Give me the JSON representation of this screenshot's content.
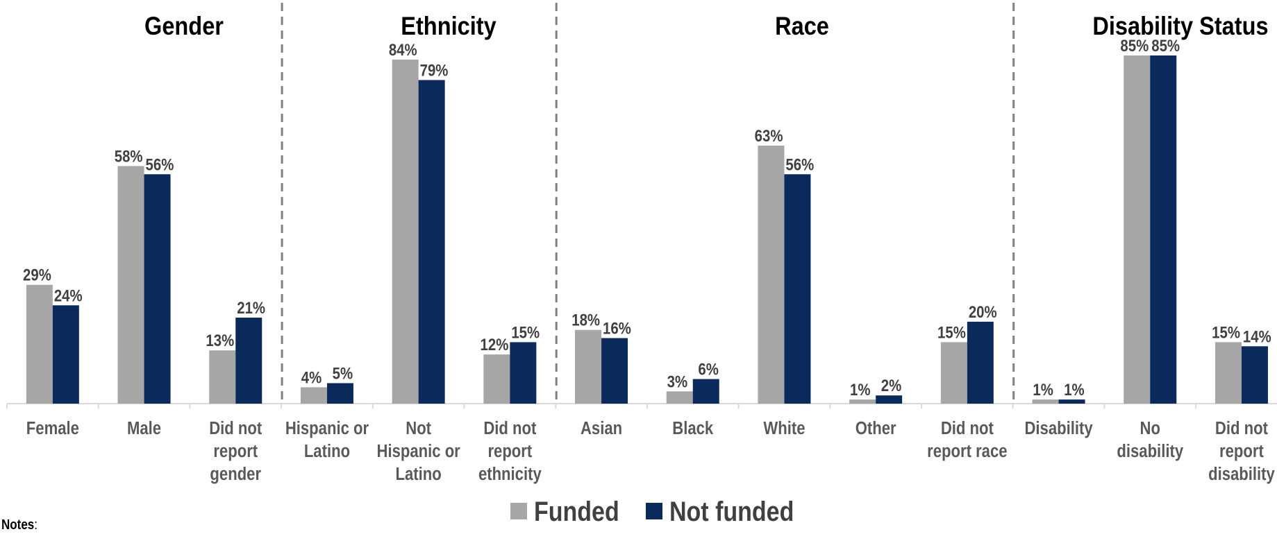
{
  "chart_data": {
    "type": "bar",
    "groups": [
      {
        "title": "Gender",
        "categories": [
          "Female",
          "Male",
          "Did not report gender"
        ]
      },
      {
        "title": "Ethnicity",
        "categories": [
          "Hispanic or Latino",
          "Not Hispanic or Latino",
          "Did not report ethnicity"
        ]
      },
      {
        "title": "Race",
        "categories": [
          "Asian",
          "Black",
          "White",
          "Other",
          "Did not report race"
        ]
      },
      {
        "title": "Disability Status",
        "categories": [
          "Disability",
          "No disability",
          "Did not report disability"
        ]
      }
    ],
    "category_lines": [
      [
        "Female"
      ],
      [
        "Male"
      ],
      [
        "Did not",
        "report",
        "gender"
      ],
      [
        "Hispanic or",
        "Latino"
      ],
      [
        "Not",
        "Hispanic or",
        "Latino"
      ],
      [
        "Did not",
        "report",
        "ethnicity"
      ],
      [
        "Asian"
      ],
      [
        "Black"
      ],
      [
        "White"
      ],
      [
        "Other"
      ],
      [
        "Did not",
        "report race"
      ],
      [
        "Disability"
      ],
      [
        "No",
        "disability"
      ],
      [
        "Did not",
        "report",
        "disability"
      ]
    ],
    "series": [
      {
        "name": "Funded",
        "color": "#a6a6a6",
        "values": [
          29,
          58,
          13,
          4,
          84,
          12,
          18,
          3,
          63,
          1,
          15,
          1,
          85,
          15
        ],
        "labels": [
          "29%",
          "58%",
          "13%",
          "4%",
          "84%",
          "12%",
          "18%",
          "3%",
          "63%",
          "1%",
          "15%",
          "1%",
          "85%",
          "15%"
        ]
      },
      {
        "name": "Not funded",
        "color": "#0b2a5c",
        "values": [
          24,
          56,
          21,
          5,
          79,
          15,
          16,
          6,
          56,
          2,
          20,
          1,
          85,
          14
        ],
        "labels": [
          "24%",
          "56%",
          "21%",
          "5%",
          "79%",
          "15%",
          "16%",
          "6%",
          "56%",
          "2%",
          "20%",
          "1%",
          "85%",
          "14%"
        ]
      }
    ],
    "ylim": [
      0,
      85
    ],
    "legend_position": "bottom-center",
    "grid": false
  },
  "notes_label": "Notes",
  "notes_suffix": ":"
}
